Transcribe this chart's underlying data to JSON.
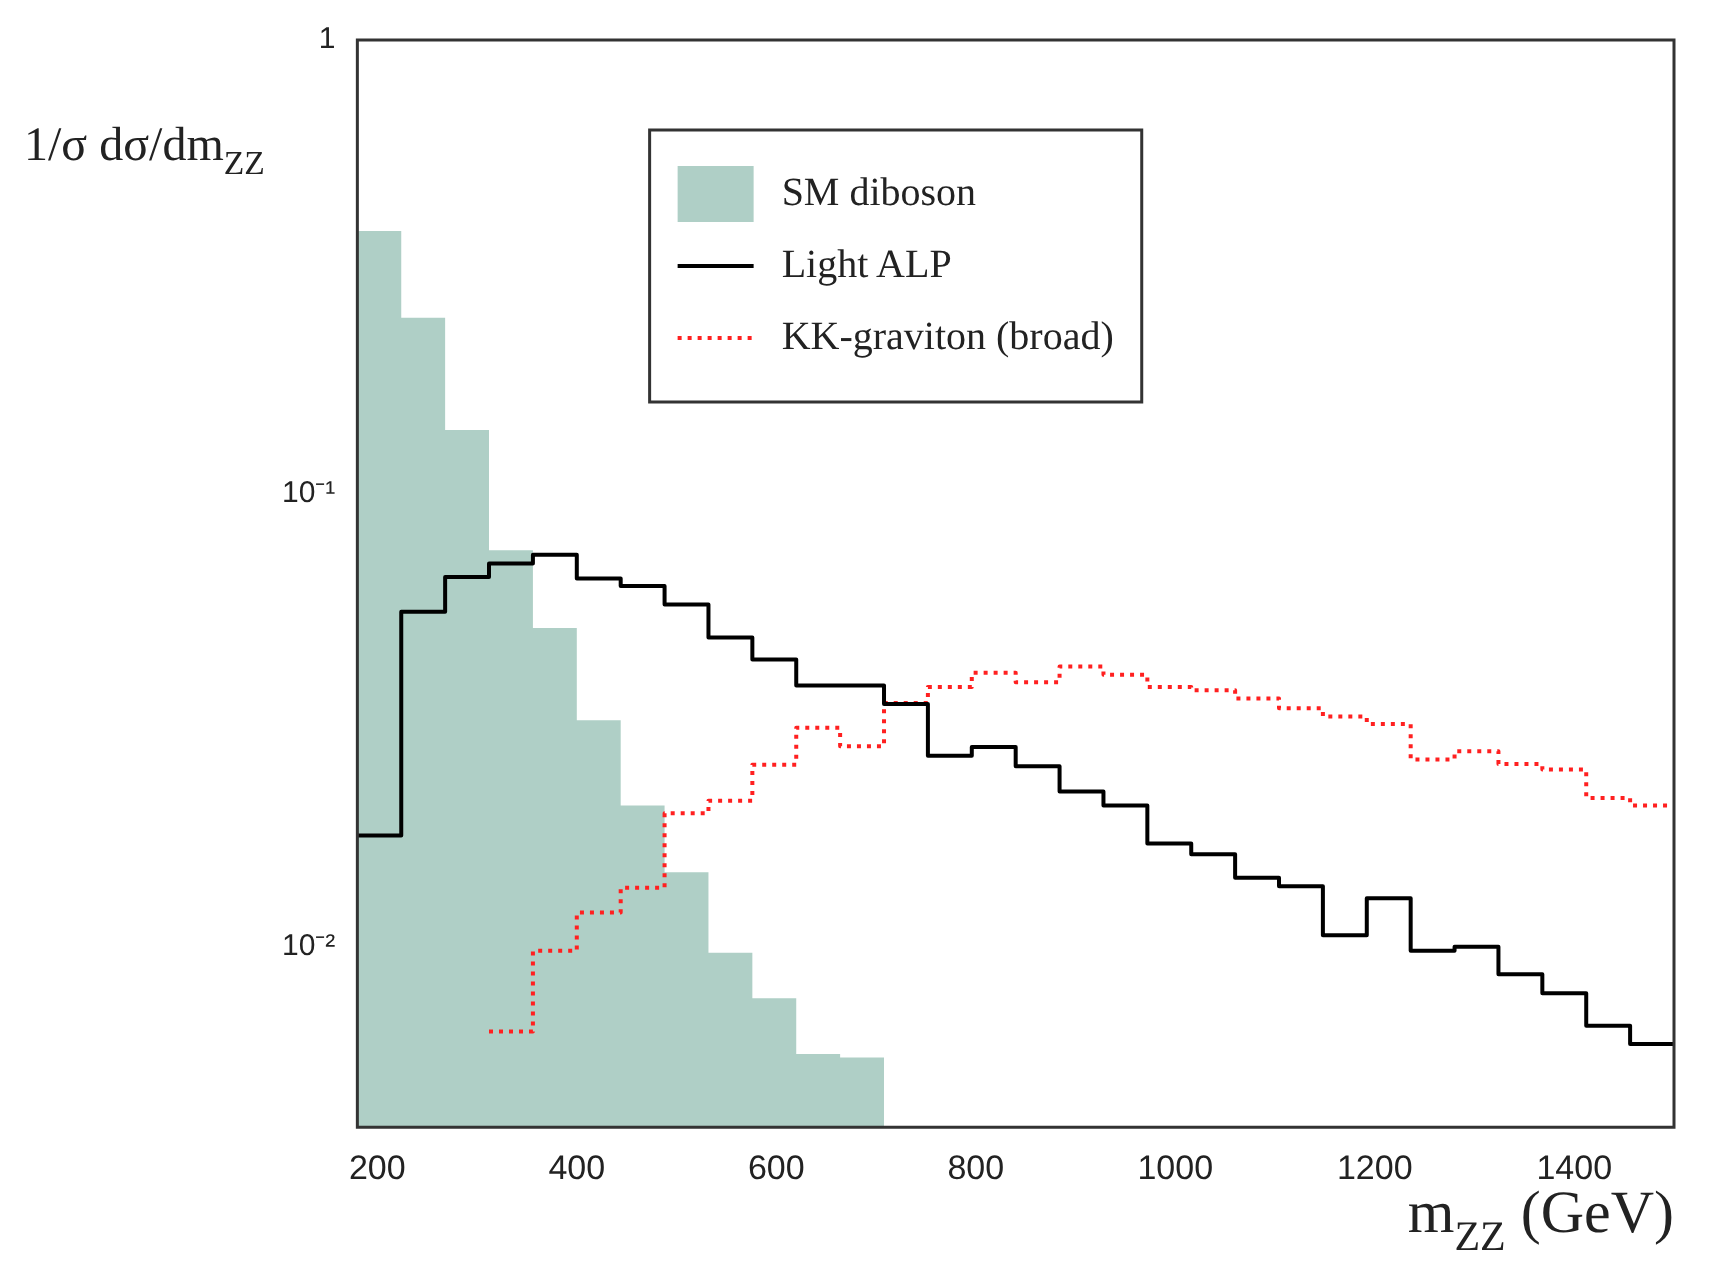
{
  "chart_data": {
    "type": "step",
    "xlabel": "m$_{ZZ}$ (GeV)",
    "ylabel": "1/σ dσ/dm$_{ZZ}$",
    "series": [
      {
        "name": "SM diboson",
        "type": "area",
        "color": "#afcfc6",
        "x": [
          180,
          224,
          268,
          312,
          356,
          400,
          444,
          488,
          532,
          576,
          620,
          664,
          708
        ],
        "values": [
          0.379,
          0.244,
          0.138,
          0.0749,
          0.0505,
          0.0316,
          0.0205,
          0.0146,
          0.0097,
          0.0077,
          0.0058,
          0.0057,
          0.0057
        ]
      },
      {
        "name": "Light ALP",
        "type": "step",
        "color": "#000000",
        "line_style": "solid",
        "x": [
          180,
          224,
          268,
          312,
          356,
          400,
          444,
          488,
          532,
          576,
          620,
          664,
          708,
          752,
          796,
          840,
          884,
          928,
          972,
          1016,
          1060,
          1104,
          1148,
          1192,
          1236,
          1280,
          1324,
          1368,
          1412,
          1456,
          1500
        ],
        "values": [
          0.0176,
          0.0548,
          0.0654,
          0.07,
          0.0732,
          0.0649,
          0.0625,
          0.0569,
          0.0481,
          0.043,
          0.0377,
          0.0377,
          0.0343,
          0.0264,
          0.0276,
          0.025,
          0.022,
          0.0205,
          0.0169,
          0.016,
          0.0142,
          0.0136,
          0.0106,
          0.0128,
          0.0098,
          0.01,
          0.0087,
          0.0079,
          0.0067,
          0.0061,
          0.0061
        ]
      },
      {
        "name": "KK-graviton (broad)",
        "type": "step",
        "color": "#ff2020",
        "line_style": "dotted",
        "x": [
          312,
          356,
          400,
          444,
          488,
          532,
          576,
          620,
          664,
          708,
          752,
          796,
          840,
          884,
          928,
          972,
          1016,
          1060,
          1104,
          1148,
          1192,
          1236,
          1280,
          1324,
          1368,
          1412,
          1456,
          1500
        ],
        "values": [
          0.0065,
          0.0098,
          0.0119,
          0.0135,
          0.0197,
          0.021,
          0.0252,
          0.0304,
          0.0277,
          0.0345,
          0.0374,
          0.0402,
          0.0383,
          0.0415,
          0.0398,
          0.0374,
          0.0368,
          0.0353,
          0.0336,
          0.0322,
          0.031,
          0.0259,
          0.027,
          0.0253,
          0.0246,
          0.0213,
          0.0205,
          0.0205
        ]
      }
    ],
    "xlim": [
      180,
      1500
    ],
    "xticks": [
      200,
      400,
      600,
      800,
      1000,
      1200,
      1400
    ],
    "ylim": [
      0.004,
      1
    ],
    "yticks": [
      {
        "value": 1,
        "label": "1"
      },
      {
        "value": 0.1,
        "label": "10⁻¹"
      },
      {
        "value": 0.01,
        "label": "10⁻²"
      }
    ],
    "log": "y",
    "grid": false,
    "legend": "top"
  }
}
